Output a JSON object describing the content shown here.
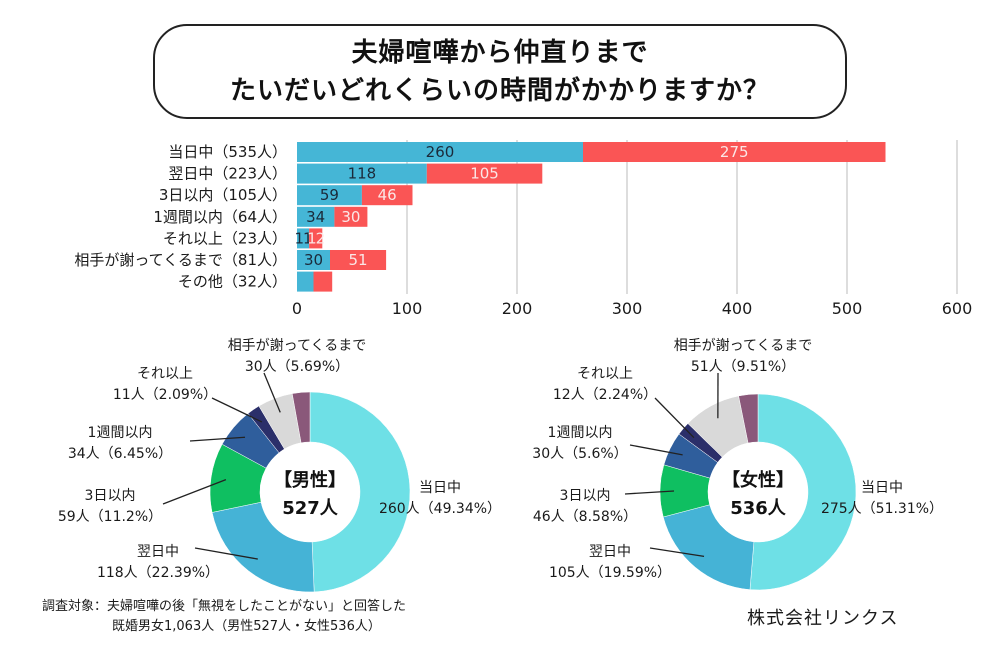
{
  "title": {
    "line1": "夫婦喧嘩から仲直りまで",
    "line2": "たいだいどれくらいの時間がかかりますか？"
  },
  "colors": {
    "male_bar": "#45b6d6",
    "female_bar": "#fa5555",
    "grid": "#dddddd",
    "pie": [
      "#6ee0e6",
      "#45b3d6",
      "#0fbf61",
      "#2f5e9c",
      "#2b2f6a",
      "#d9d9d9",
      "#8a587a"
    ]
  },
  "chart_data": [
    {
      "type": "bar",
      "orientation": "horizontal",
      "stacked": true,
      "categories": [
        "当日中（535人）",
        "翌日中（223人）",
        "3日以内（105人）",
        "1週間以内（64人）",
        "それ以上（23人）",
        "相手が謝ってくるまで（81人）",
        "その他（32人）"
      ],
      "series": [
        {
          "name": "男性",
          "values": [
            260,
            118,
            59,
            34,
            11,
            30,
            15
          ],
          "labels": [
            "260",
            "118",
            "59",
            "34",
            "11",
            "30",
            ""
          ]
        },
        {
          "name": "女性",
          "values": [
            275,
            105,
            46,
            30,
            12,
            51,
            17
          ],
          "labels": [
            "275",
            "105",
            "46",
            "30",
            "12",
            "51",
            ""
          ]
        }
      ],
      "xlim": [
        0,
        600
      ],
      "xticks": [
        "0",
        "100",
        "200",
        "300",
        "400",
        "500",
        "600"
      ],
      "grid": true
    },
    {
      "type": "pie",
      "donut": true,
      "center_title": "【男性】",
      "center_total": "527人",
      "categories": [
        "当日中",
        "翌日中",
        "3日以内",
        "1週間以内",
        "それ以上",
        "相手が謝ってくるまで",
        "その他"
      ],
      "values": [
        260,
        118,
        59,
        34,
        11,
        30,
        15
      ],
      "labels": [
        {
          "name": "当日中",
          "detail": "260人（49.34%）"
        },
        {
          "name": "翌日中",
          "detail": "118人（22.39%）"
        },
        {
          "name": "3日以内",
          "detail": "59人（11.2%）"
        },
        {
          "name": "1週間以内",
          "detail": "34人（6.45%）"
        },
        {
          "name": "それ以上",
          "detail": "11人（2.09%）"
        },
        {
          "name": "相手が謝ってくるまで",
          "detail": "30人（5.69%）"
        }
      ]
    },
    {
      "type": "pie",
      "donut": true,
      "center_title": "【女性】",
      "center_total": "536人",
      "categories": [
        "当日中",
        "翌日中",
        "3日以内",
        "1週間以内",
        "それ以上",
        "相手が謝ってくるまで",
        "その他"
      ],
      "values": [
        275,
        105,
        46,
        30,
        12,
        51,
        17
      ],
      "labels": [
        {
          "name": "当日中",
          "detail": "275人（51.31%）"
        },
        {
          "name": "翌日中",
          "detail": "105人（19.59%）"
        },
        {
          "name": "3日以内",
          "detail": "46人（8.58%）"
        },
        {
          "name": "1週間以内",
          "detail": "30人（5.6%）"
        },
        {
          "name": "それ以上",
          "detail": "12人（2.24%）"
        },
        {
          "name": "相手が謝ってくるまで",
          "detail": "51人（9.51%）"
        }
      ]
    }
  ],
  "footnote": {
    "line1": "調査対象：夫婦喧嘩の後「無視をしたことがない」と回答した",
    "line2": "既婚男女1,063人（男性527人・女性536人）"
  },
  "company": "株式会社リンクス"
}
